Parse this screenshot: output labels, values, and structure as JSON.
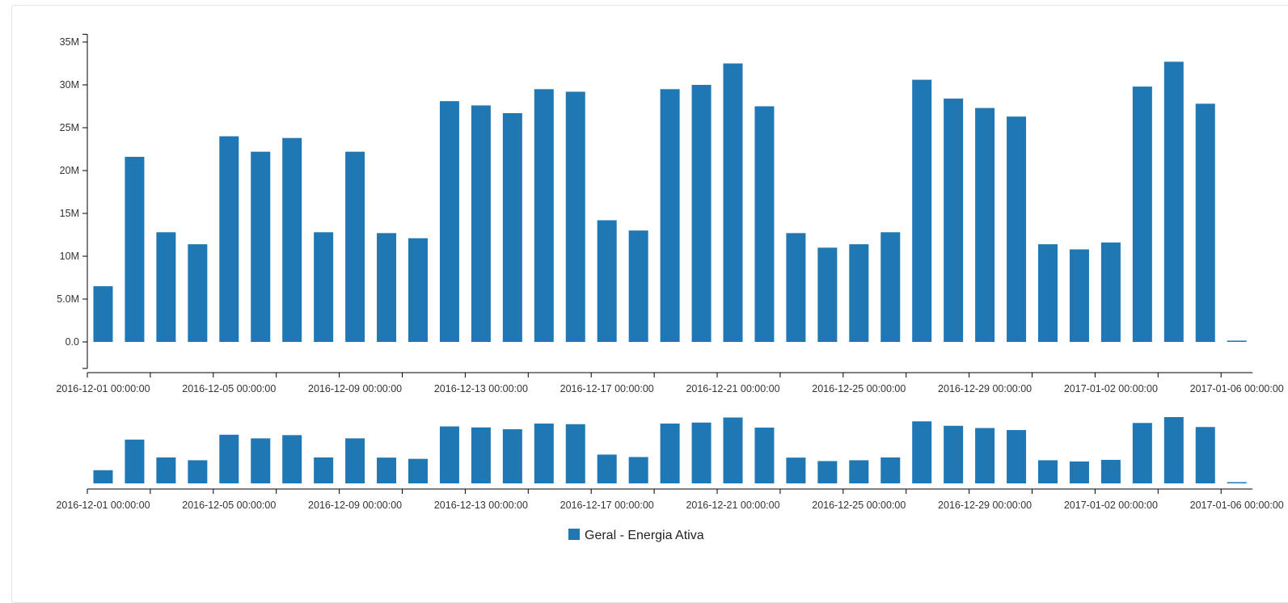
{
  "chart_data": {
    "type": "bar",
    "x": [
      "2016-12-01",
      "2016-12-02",
      "2016-12-03",
      "2016-12-04",
      "2016-12-05",
      "2016-12-06",
      "2016-12-07",
      "2016-12-08",
      "2016-12-09",
      "2016-12-10",
      "2016-12-11",
      "2016-12-12",
      "2016-12-13",
      "2016-12-14",
      "2016-12-15",
      "2016-12-16",
      "2016-12-17",
      "2016-12-18",
      "2016-12-19",
      "2016-12-20",
      "2016-12-21",
      "2016-12-22",
      "2016-12-23",
      "2016-12-24",
      "2016-12-25",
      "2016-12-26",
      "2016-12-27",
      "2016-12-28",
      "2016-12-29",
      "2016-12-30",
      "2016-12-31",
      "2017-01-01",
      "2017-01-02",
      "2017-01-03",
      "2017-01-04",
      "2017-01-05",
      "2017-01-06"
    ],
    "series": [
      {
        "name": "Geral - Energia Ativa",
        "color": "#1f77b4",
        "values": [
          6500000,
          21600000,
          12800000,
          11400000,
          24000000,
          22200000,
          23800000,
          12800000,
          22200000,
          12700000,
          12100000,
          28100000,
          27600000,
          26700000,
          29500000,
          29200000,
          14200000,
          13000000,
          29500000,
          30000000,
          32500000,
          27500000,
          12700000,
          11000000,
          11400000,
          12800000,
          30600000,
          28400000,
          27300000,
          26300000,
          11400000,
          10800000,
          11600000,
          29800000,
          32700000,
          27800000,
          150000
        ]
      }
    ],
    "y_ticks": [
      "0.0",
      "5.0M",
      "10M",
      "15M",
      "20M",
      "25M",
      "30M",
      "35M"
    ],
    "y_tick_values": [
      0,
      5000000,
      10000000,
      15000000,
      20000000,
      25000000,
      30000000,
      35000000
    ],
    "ylim": [
      -3000000,
      36000000
    ],
    "x_tick_labels": [
      "2016-12-01 00:00:00",
      "2016-12-05 00:00:00",
      "2016-12-09 00:00:00",
      "2016-12-13 00:00:00",
      "2016-12-17 00:00:00",
      "2016-12-21 00:00:00",
      "2016-12-25 00:00:00",
      "2016-12-29 00:00:00",
      "2017-01-02 00:00:00",
      "2017-01-06 00:00:00"
    ],
    "x_tick_label_indices": [
      0,
      4,
      8,
      12,
      16,
      20,
      24,
      28,
      32,
      36
    ],
    "grid": false,
    "legend_position": "bottom-center"
  }
}
